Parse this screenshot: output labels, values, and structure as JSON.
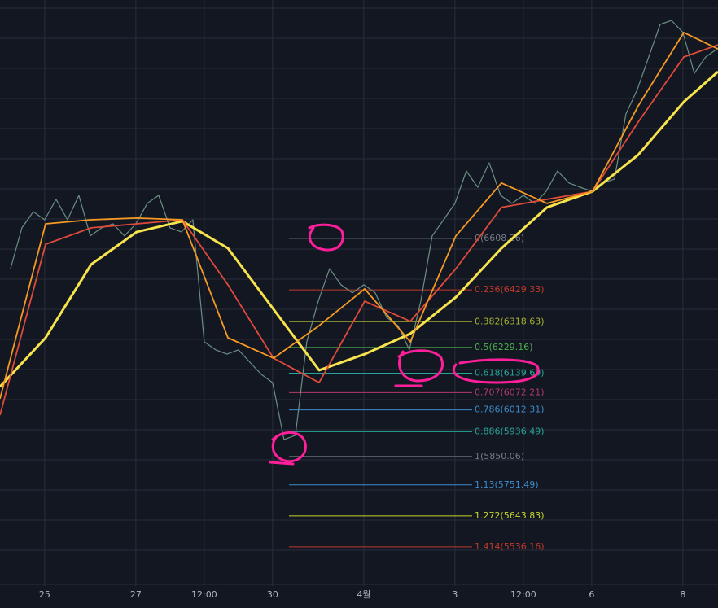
{
  "chart_data": {
    "type": "line",
    "xlim": [
      -0.98,
      14.77
    ],
    "ylim": [
      5400,
      7437
    ],
    "grid": true,
    "xticks": [
      {
        "value": 0,
        "label": "25"
      },
      {
        "value": 2,
        "label": "27"
      },
      {
        "value": 3.5,
        "label": "12:00"
      },
      {
        "value": 5,
        "label": "30"
      },
      {
        "value": 7,
        "label": "4월"
      },
      {
        "value": 9,
        "label": "3"
      },
      {
        "value": 10.5,
        "label": "12:00"
      },
      {
        "value": 12,
        "label": "6"
      },
      {
        "value": 14,
        "label": "8"
      }
    ],
    "series": [
      {
        "color": "#6b8f82",
        "x": [
          -0.75,
          -0.5,
          -0.25,
          0,
          0.25,
          0.5,
          0.75,
          1,
          1.25,
          1.5,
          1.75,
          2,
          2.25,
          2.5,
          2.75,
          3,
          3.25,
          3.5,
          3.75,
          4,
          4.25,
          4.5,
          4.75,
          5,
          5.25,
          5.5,
          5.75,
          6,
          6.25,
          6.5,
          6.75,
          7,
          7.25,
          7.5,
          7.75,
          8,
          8.25,
          8.5,
          8.75,
          9,
          9.25,
          9.5,
          9.75,
          10,
          10.25,
          10.5,
          10.75,
          11,
          11.25,
          11.5,
          11.75,
          12,
          12.25,
          12.5,
          12.75,
          13,
          13.25,
          13.5,
          13.75,
          14,
          14.25,
          14.5,
          14.75
        ],
        "values": [
          6503,
          6645,
          6701,
          6673,
          6744,
          6673,
          6758,
          6617,
          6645,
          6659,
          6617,
          6659,
          6730,
          6758,
          6645,
          6631,
          6673,
          6249,
          6221,
          6206,
          6221,
          6178,
          6136,
          6107,
          5909,
          5924,
          6249,
          6390,
          6503,
          6447,
          6419,
          6447,
          6419,
          6334,
          6305,
          6221,
          6390,
          6617,
          6673,
          6730,
          6843,
          6786,
          6871,
          6758,
          6730,
          6758,
          6730,
          6772,
          6843,
          6801,
          6786,
          6772,
          6801,
          6815,
          7041,
          7126,
          7239,
          7352,
          7366,
          7324,
          7182,
          7239,
          7267
        ]
      },
      {
        "color": "#f7e34b",
        "x": [
          -0.98,
          0.02,
          1.02,
          2.02,
          3.02,
          4.02,
          5.02,
          6.02,
          7.02,
          8.02,
          9.02,
          10.02,
          11.02,
          12.02,
          13.02,
          14.02,
          14.77
        ],
        "values": [
          6093,
          6263,
          6518,
          6631,
          6668,
          6574,
          6362,
          6150,
          6206,
          6277,
          6404,
          6574,
          6716,
          6772,
          6899,
          7083,
          7188
        ]
      },
      {
        "color": "#e04a3a",
        "x": [
          -0.98,
          0.02,
          1.02,
          2.02,
          3.02,
          4.02,
          5.02,
          6.02,
          7.02,
          8.02,
          9.02,
          10.02,
          11.02,
          12.02,
          13.02,
          14.02,
          14.77
        ],
        "values": [
          5994,
          6588,
          6645,
          6659,
          6673,
          6447,
          6192,
          6107,
          6390,
          6320,
          6503,
          6716,
          6744,
          6772,
          7013,
          7239,
          7281
        ]
      },
      {
        "color": "#f59a23",
        "x": [
          -0.98,
          0.02,
          1.02,
          2.02,
          3.02,
          4.02,
          5.02,
          6.02,
          7.02,
          8.02,
          9.02,
          10.02,
          11.02,
          12.02,
          13.02,
          14.02,
          14.77
        ],
        "values": [
          6051,
          6659,
          6673,
          6679,
          6673,
          6263,
          6192,
          6305,
          6433,
          6249,
          6617,
          6801,
          6730,
          6772,
          7069,
          7324,
          7267
        ]
      }
    ],
    "fib_levels": [
      {
        "value": 6608.26,
        "label": "0(6608.26)",
        "color": "#787b86"
      },
      {
        "value": 6429.33,
        "label": "0.236(6429.33)",
        "color": "#c0392b"
      },
      {
        "value": 6318.63,
        "label": "0.382(6318.63)",
        "color": "#a3b22f"
      },
      {
        "value": 6229.16,
        "label": "0.5(6229.16)",
        "color": "#4caf50"
      },
      {
        "value": 6139.69,
        "label": "0.618(6139.69)",
        "color": "#26a69a"
      },
      {
        "value": 6072.21,
        "label": "0.707(6072.21)",
        "color": "#b03a6a"
      },
      {
        "value": 6012.31,
        "label": "0.786(6012.31)",
        "color": "#3d8bc9"
      },
      {
        "value": 5936.49,
        "label": "0.886(5936.49)",
        "color": "#26a69a"
      },
      {
        "value": 5850.06,
        "label": "1(5850.06)",
        "color": "#787b86"
      },
      {
        "value": 5751.49,
        "label": "1.13(5751.49)",
        "color": "#3d8bc9"
      },
      {
        "value": 5643.83,
        "label": "1.272(5643.83)",
        "color": "#c8d62f"
      },
      {
        "value": 5536.16,
        "label": "1.414(5536.16)",
        "color": "#c0392b"
      }
    ]
  }
}
